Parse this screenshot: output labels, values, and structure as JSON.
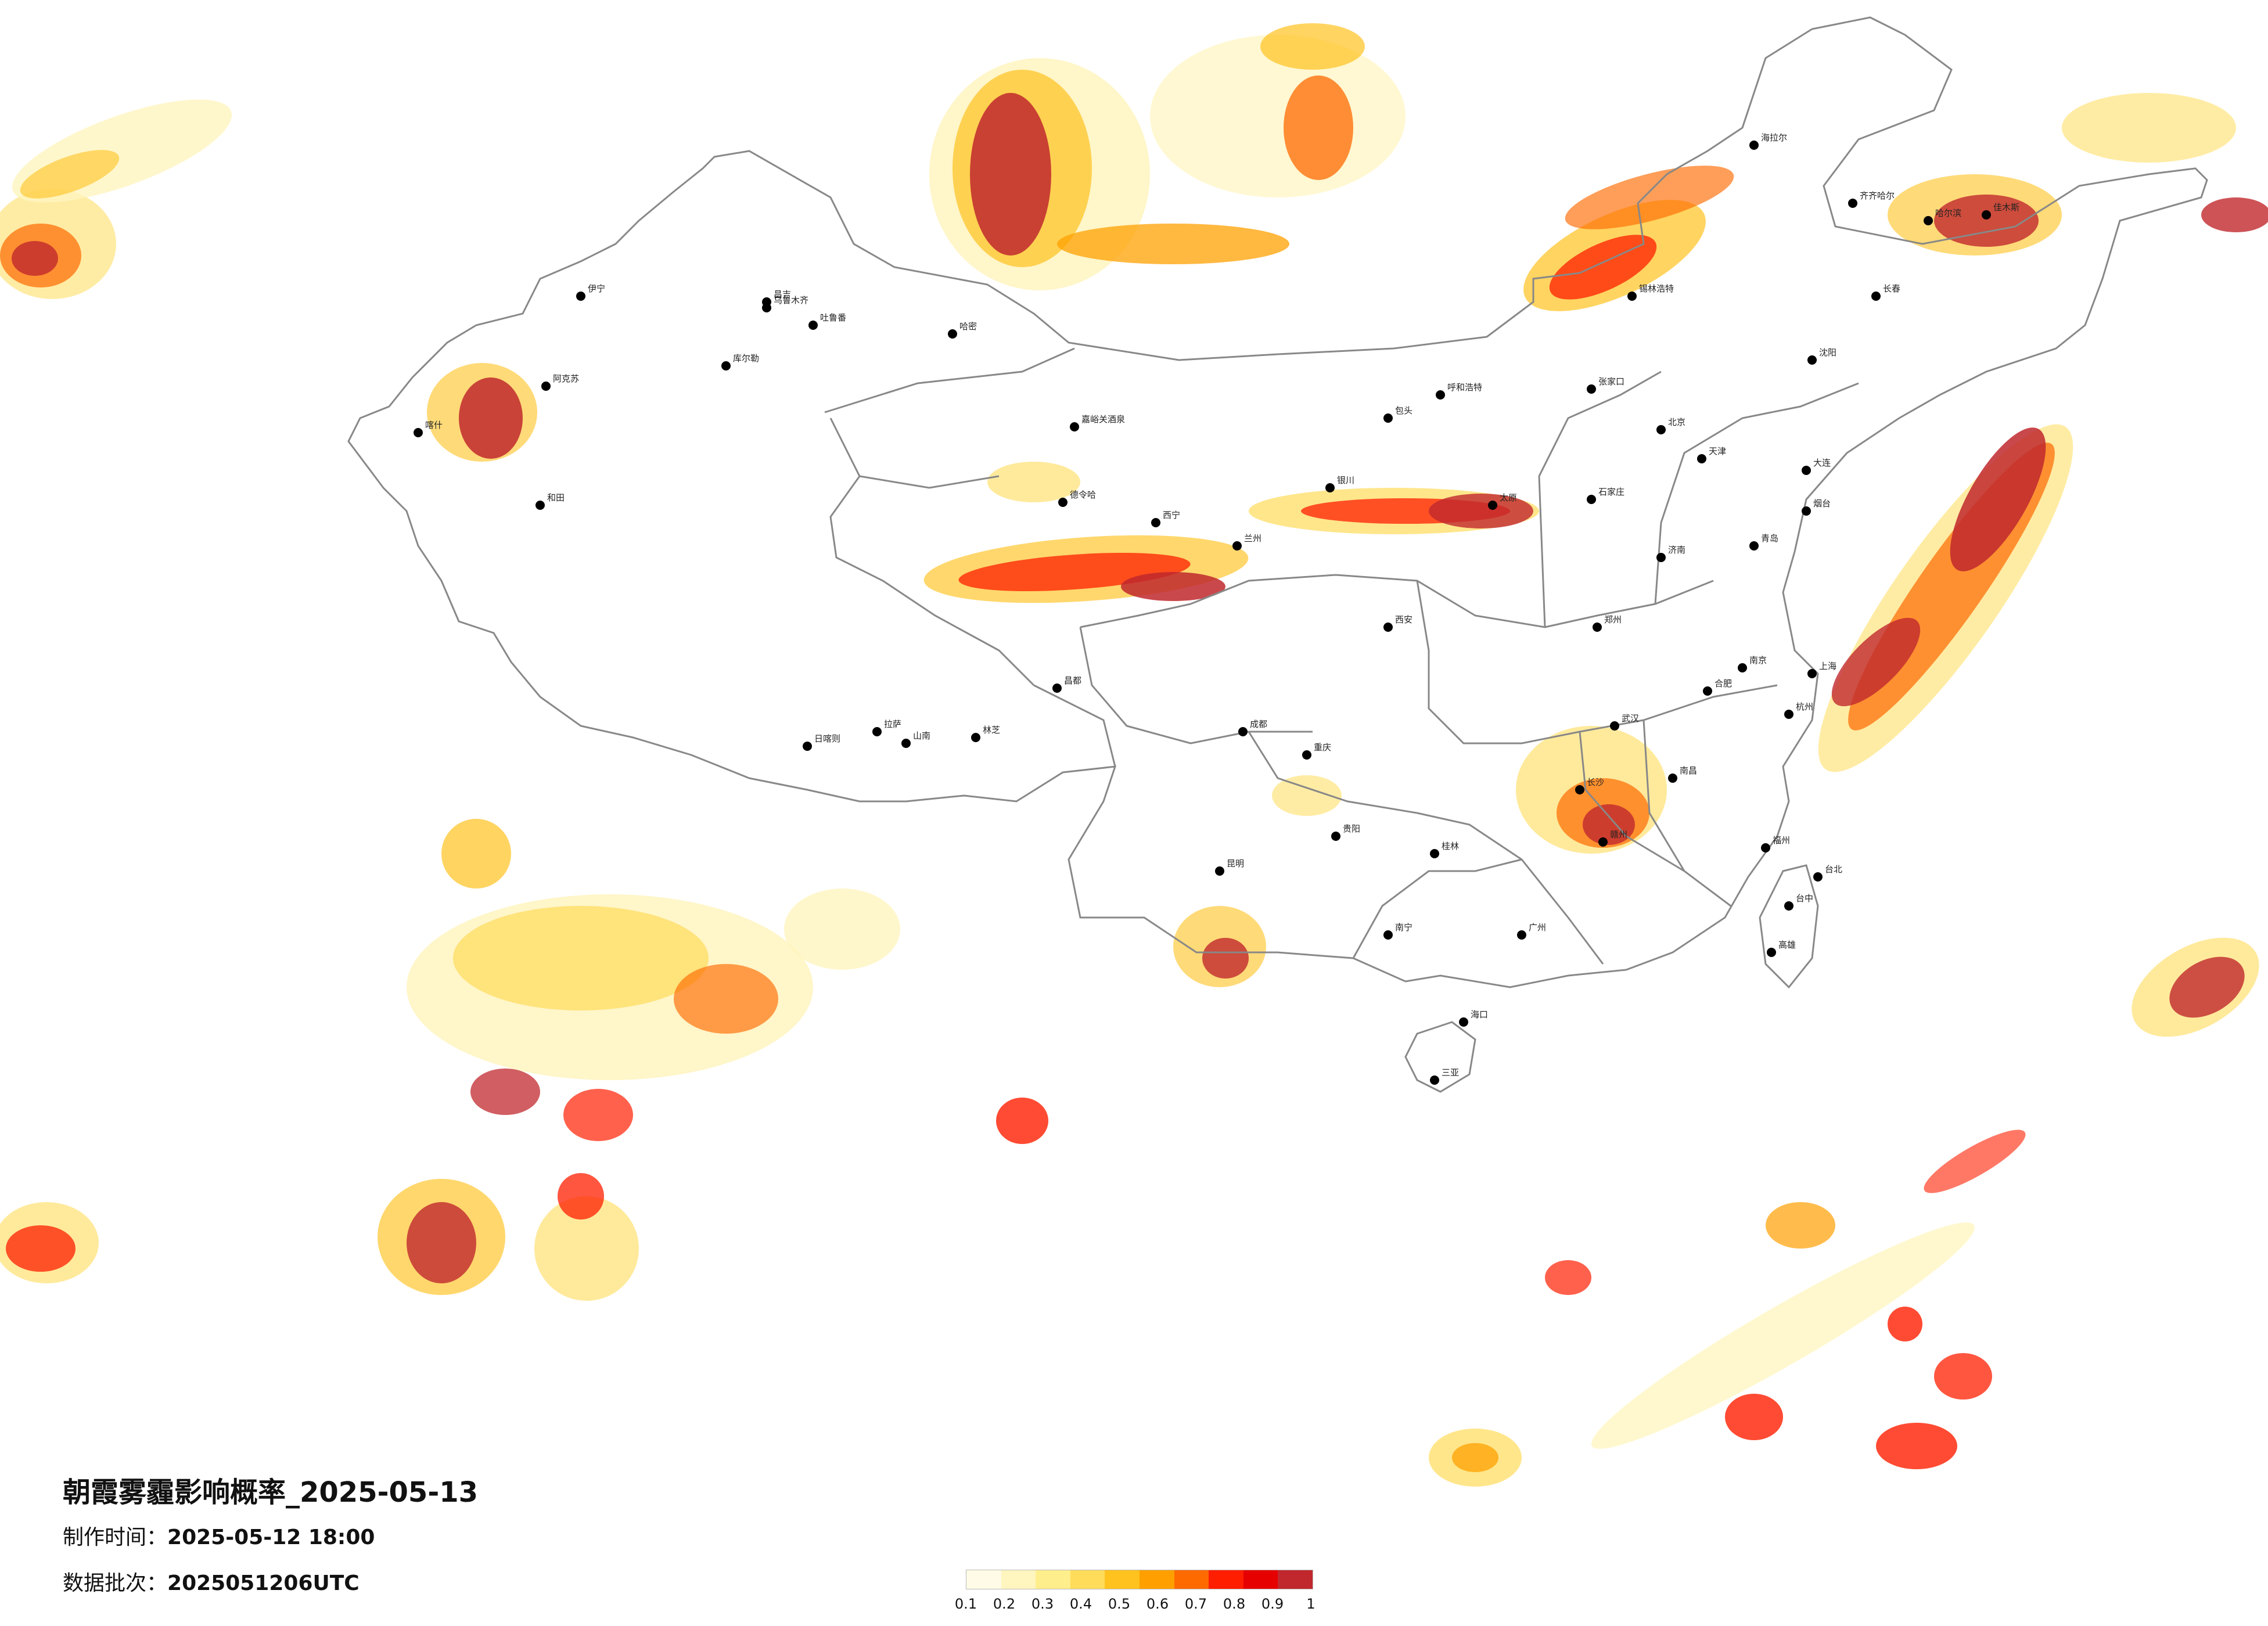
{
  "title": "朝霞雾霾影响概率_2025-05-13",
  "made_time_label": "制作时间：",
  "made_time": "2025-05-12 18:00",
  "batch_label": "数据批次：",
  "batch": "2025051206UTC",
  "legend": {
    "ticks": [
      "0.1",
      "0.2",
      "0.3",
      "0.4",
      "0.5",
      "0.6",
      "0.7",
      "0.8",
      "0.9",
      "1"
    ],
    "colors": [
      "#fffbe6",
      "#fff5bf",
      "#ffee8c",
      "#ffdc5a",
      "#ffc21e",
      "#ffa000",
      "#ff6a00",
      "#ff1e00",
      "#e60000",
      "#c0282d"
    ]
  },
  "cities": [
    {
      "name": "伊宁"
    },
    {
      "name": "昌吉"
    },
    {
      "name": "乌鲁木齐"
    },
    {
      "name": "吐鲁番"
    },
    {
      "name": "哈密"
    },
    {
      "name": "库尔勒"
    },
    {
      "name": "阿克苏"
    },
    {
      "name": "喀什"
    },
    {
      "name": "和田"
    },
    {
      "name": "嘉峪关酒泉"
    },
    {
      "name": "德令哈"
    },
    {
      "name": "西宁"
    },
    {
      "name": "兰州"
    },
    {
      "name": "拉萨"
    },
    {
      "name": "日喀则"
    },
    {
      "name": "山南"
    },
    {
      "name": "林芝"
    },
    {
      "name": "昌都"
    },
    {
      "name": "成都"
    },
    {
      "name": "重庆"
    },
    {
      "name": "贵阳"
    },
    {
      "name": "昆明"
    },
    {
      "name": "南宁"
    },
    {
      "name": "海口"
    },
    {
      "name": "三亚"
    },
    {
      "name": "广州"
    },
    {
      "name": "长沙"
    },
    {
      "name": "武汉"
    },
    {
      "name": "南昌"
    },
    {
      "name": "福州"
    },
    {
      "name": "杭州"
    },
    {
      "name": "南京"
    },
    {
      "name": "合肥"
    },
    {
      "name": "上海"
    },
    {
      "name": "郑州"
    },
    {
      "name": "西安"
    },
    {
      "name": "太原"
    },
    {
      "name": "石家庄"
    },
    {
      "name": "北京"
    },
    {
      "name": "天津"
    },
    {
      "name": "济南"
    },
    {
      "name": "呼和浩特"
    },
    {
      "name": "包头"
    },
    {
      "name": "银川"
    },
    {
      "name": "沈阳"
    },
    {
      "name": "长春"
    },
    {
      "name": "哈尔滨"
    },
    {
      "name": "齐齐哈尔"
    },
    {
      "name": "海拉尔"
    },
    {
      "name": "佳木斯"
    },
    {
      "name": "大连"
    },
    {
      "name": "青岛"
    },
    {
      "name": "台北"
    },
    {
      "name": "台中"
    },
    {
      "name": "高雄"
    },
    {
      "name": "锡林浩特"
    },
    {
      "name": "张家口"
    },
    {
      "name": "烟台"
    },
    {
      "name": "赣州"
    },
    {
      "name": "桂林"
    }
  ]
}
